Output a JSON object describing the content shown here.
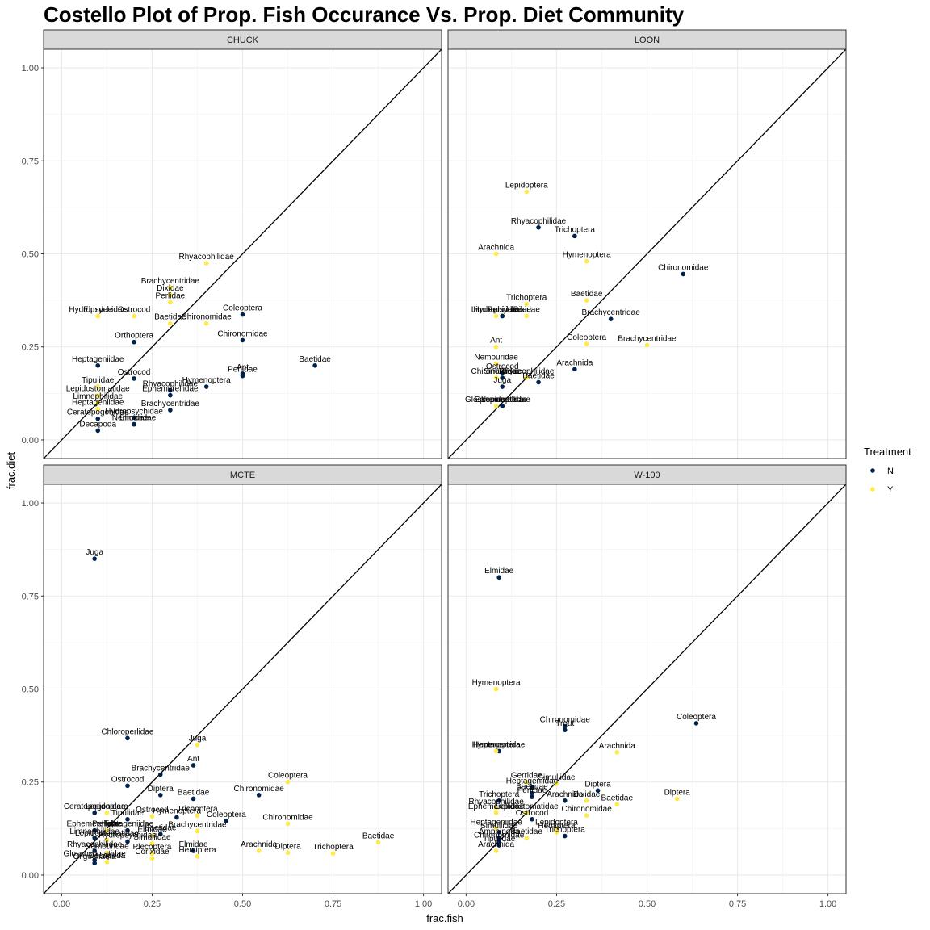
{
  "chart_data": {
    "type": "scatter",
    "title": "Costello Plot of Prop. Fish Occurance Vs. Prop. Diet Community",
    "xlabel": "frac.fish",
    "ylabel": "frac.diet",
    "xlim": [
      -0.05,
      1.05
    ],
    "ylim": [
      -0.05,
      1.05
    ],
    "x_ticks": [
      "0.00",
      "0.25",
      "0.50",
      "0.75",
      "1.00"
    ],
    "y_ticks": [
      "0.00",
      "0.25",
      "0.50",
      "0.75",
      "1.00"
    ],
    "tick_values": [
      0,
      0.25,
      0.5,
      0.75,
      1
    ],
    "reference_line": "y = x",
    "grid": true,
    "legend": {
      "title": "Treatment",
      "placement": "right",
      "entries": [
        {
          "key": "N",
          "label": "N",
          "color": "#00204D"
        },
        {
          "key": "Y",
          "label": "Y",
          "color": "#FFEA46"
        }
      ]
    },
    "panels": [
      {
        "name": "CHUCK",
        "points": [
          {
            "label": "Rhyacophilidae",
            "x": 0.4,
            "y": 0.475,
            "t": "Y"
          },
          {
            "label": "Brachycentridae",
            "x": 0.3,
            "y": 0.41,
            "t": "Y"
          },
          {
            "label": "Dixidae",
            "x": 0.3,
            "y": 0.39,
            "t": "Y"
          },
          {
            "label": "Perlidae",
            "x": 0.3,
            "y": 0.37,
            "t": "Y"
          },
          {
            "label": "Hydropsychidae",
            "x": 0.1,
            "y": 0.333,
            "t": "Y"
          },
          {
            "label": "Elmidae",
            "x": 0.1,
            "y": 0.333,
            "t": "Y"
          },
          {
            "label": "Ostrocod",
            "x": 0.2,
            "y": 0.333,
            "t": "Y"
          },
          {
            "label": "Baetidae",
            "x": 0.3,
            "y": 0.313,
            "t": "Y"
          },
          {
            "label": "Chironomidae",
            "x": 0.4,
            "y": 0.313,
            "t": "Y"
          },
          {
            "label": "Coleoptera",
            "x": 0.5,
            "y": 0.337,
            "t": "N"
          },
          {
            "label": "Orthoptera",
            "x": 0.2,
            "y": 0.263,
            "t": "N"
          },
          {
            "label": "Chironomidae",
            "x": 0.5,
            "y": 0.268,
            "t": "N"
          },
          {
            "label": "Heptageniidae",
            "x": 0.1,
            "y": 0.2,
            "t": "N"
          },
          {
            "label": "Baetidae",
            "x": 0.7,
            "y": 0.2,
            "t": "N"
          },
          {
            "label": "Ostrocod",
            "x": 0.2,
            "y": 0.165,
            "t": "N"
          },
          {
            "label": "Tipulidae",
            "x": 0.1,
            "y": 0.143,
            "t": "Y"
          },
          {
            "label": "Ant",
            "x": 0.5,
            "y": 0.178,
            "t": "N"
          },
          {
            "label": "Perlidae",
            "x": 0.5,
            "y": 0.172,
            "t": "N"
          },
          {
            "label": "Hymenoptera",
            "x": 0.4,
            "y": 0.143,
            "t": "N"
          },
          {
            "label": "Rhyacophilidae",
            "x": 0.3,
            "y": 0.133,
            "t": "N"
          },
          {
            "label": "Ephemerellidae",
            "x": 0.3,
            "y": 0.12,
            "t": "N"
          },
          {
            "label": "Lepidostomatidae",
            "x": 0.1,
            "y": 0.12,
            "t": "Y"
          },
          {
            "label": "Limnephilidae",
            "x": 0.1,
            "y": 0.1,
            "t": "Y"
          },
          {
            "label": "Heptageniidae",
            "x": 0.1,
            "y": 0.083,
            "t": "Y"
          },
          {
            "label": "Brachycentridae",
            "x": 0.3,
            "y": 0.08,
            "t": "N"
          },
          {
            "label": "Ceratopogonidae",
            "x": 0.1,
            "y": 0.057,
            "t": "N"
          },
          {
            "label": "Hydropsychidae",
            "x": 0.2,
            "y": 0.06,
            "t": "N"
          },
          {
            "label": "Nemouridae",
            "x": 0.2,
            "y": 0.042,
            "t": "N"
          },
          {
            "label": "Elmidae",
            "x": 0.2,
            "y": 0.042,
            "t": "N"
          },
          {
            "label": "Decapoda",
            "x": 0.1,
            "y": 0.025,
            "t": "N"
          }
        ]
      },
      {
        "name": "LOON",
        "points": [
          {
            "label": "Lepidoptera",
            "x": 0.167,
            "y": 0.667,
            "t": "Y"
          },
          {
            "label": "Rhyacophilidae",
            "x": 0.2,
            "y": 0.571,
            "t": "N"
          },
          {
            "label": "Trichoptera",
            "x": 0.3,
            "y": 0.548,
            "t": "N"
          },
          {
            "label": "Arachnida",
            "x": 0.083,
            "y": 0.5,
            "t": "Y"
          },
          {
            "label": "Hymenoptera",
            "x": 0.333,
            "y": 0.48,
            "t": "Y"
          },
          {
            "label": "Chironomidae",
            "x": 0.6,
            "y": 0.446,
            "t": "N"
          },
          {
            "label": "Trichoptera",
            "x": 0.167,
            "y": 0.365,
            "t": "Y"
          },
          {
            "label": "Baetidae",
            "x": 0.333,
            "y": 0.375,
            "t": "Y"
          },
          {
            "label": "Limnephilidae",
            "x": 0.083,
            "y": 0.333,
            "t": "Y"
          },
          {
            "label": "Perlidae",
            "x": 0.1,
            "y": 0.333,
            "t": "N"
          },
          {
            "label": "Hydropsychidae",
            "x": 0.1,
            "y": 0.333,
            "t": "N"
          },
          {
            "label": "Dixidae",
            "x": 0.167,
            "y": 0.333,
            "t": "Y"
          },
          {
            "label": "Brachycentridae",
            "x": 0.4,
            "y": 0.325,
            "t": "N"
          },
          {
            "label": "Ant",
            "x": 0.083,
            "y": 0.25,
            "t": "Y"
          },
          {
            "label": "Coleoptera",
            "x": 0.333,
            "y": 0.258,
            "t": "Y"
          },
          {
            "label": "Brachycentridae",
            "x": 0.5,
            "y": 0.255,
            "t": "Y"
          },
          {
            "label": "Arachnida",
            "x": 0.3,
            "y": 0.19,
            "t": "N"
          },
          {
            "label": "Nemouridae",
            "x": 0.083,
            "y": 0.205,
            "t": "Y"
          },
          {
            "label": "Ostrocod",
            "x": 0.1,
            "y": 0.18,
            "t": "N"
          },
          {
            "label": "Chironomidae",
            "x": 0.083,
            "y": 0.167,
            "t": "Y"
          },
          {
            "label": "Simuliidae",
            "x": 0.1,
            "y": 0.167,
            "t": "N"
          },
          {
            "label": "Rhyacophilidae",
            "x": 0.167,
            "y": 0.167,
            "t": "Y"
          },
          {
            "label": "Baetidae",
            "x": 0.2,
            "y": 0.155,
            "t": "N"
          },
          {
            "label": "Juga",
            "x": 0.1,
            "y": 0.143,
            "t": "N"
          },
          {
            "label": "Glossosomatidae",
            "x": 0.083,
            "y": 0.091,
            "t": "Y"
          },
          {
            "label": "Lepidoptera",
            "x": 0.1,
            "y": 0.091,
            "t": "N"
          },
          {
            "label": "Ephemerellidae",
            "x": 0.1,
            "y": 0.091,
            "t": "N"
          }
        ]
      },
      {
        "name": "MCTE",
        "points": [
          {
            "label": "Juga",
            "x": 0.091,
            "y": 0.85,
            "t": "N"
          },
          {
            "label": "Chloroperlidae",
            "x": 0.182,
            "y": 0.368,
            "t": "N"
          },
          {
            "label": "Juga",
            "x": 0.375,
            "y": 0.35,
            "t": "Y"
          },
          {
            "label": "Ant",
            "x": 0.364,
            "y": 0.295,
            "t": "N"
          },
          {
            "label": "Brachycentridae",
            "x": 0.273,
            "y": 0.27,
            "t": "N"
          },
          {
            "label": "Coleoptera",
            "x": 0.625,
            "y": 0.25,
            "t": "Y"
          },
          {
            "label": "Ostrocod",
            "x": 0.182,
            "y": 0.24,
            "t": "N"
          },
          {
            "label": "Chironomidae",
            "x": 0.545,
            "y": 0.215,
            "t": "N"
          },
          {
            "label": "Diptera",
            "x": 0.273,
            "y": 0.215,
            "t": "N"
          },
          {
            "label": "Baetidae",
            "x": 0.364,
            "y": 0.205,
            "t": "N"
          },
          {
            "label": "Ceratopogonidae",
            "x": 0.091,
            "y": 0.167,
            "t": "N"
          },
          {
            "label": "Lepidoptera",
            "x": 0.125,
            "y": 0.167,
            "t": "Y"
          },
          {
            "label": "Tipulidae",
            "x": 0.182,
            "y": 0.15,
            "t": "N"
          },
          {
            "label": "Ostrocod",
            "x": 0.25,
            "y": 0.158,
            "t": "Y"
          },
          {
            "label": "Hymenoptera",
            "x": 0.318,
            "y": 0.155,
            "t": "N"
          },
          {
            "label": "Trichoptera",
            "x": 0.375,
            "y": 0.16,
            "t": "Y"
          },
          {
            "label": "Coleoptera",
            "x": 0.455,
            "y": 0.145,
            "t": "N"
          },
          {
            "label": "Brachycentridae",
            "x": 0.375,
            "y": 0.118,
            "t": "Y"
          },
          {
            "label": "Chironomidae",
            "x": 0.625,
            "y": 0.138,
            "t": "Y"
          },
          {
            "label": "Ephemerellidae",
            "x": 0.091,
            "y": 0.12,
            "t": "N"
          },
          {
            "label": "Perlidae",
            "x": 0.125,
            "y": 0.12,
            "t": "Y"
          },
          {
            "label": "Heptageniidae",
            "x": 0.182,
            "y": 0.12,
            "t": "N"
          },
          {
            "label": "Baetidae",
            "x": 0.273,
            "y": 0.11,
            "t": "N"
          },
          {
            "label": "Elmidae",
            "x": 0.25,
            "y": 0.105,
            "t": "Y"
          },
          {
            "label": "Limnephilidae",
            "x": 0.091,
            "y": 0.1,
            "t": "N"
          },
          {
            "label": "Lepidostomatidae",
            "x": 0.125,
            "y": 0.095,
            "t": "Y"
          },
          {
            "label": "Hydropsychidae",
            "x": 0.182,
            "y": 0.09,
            "t": "N"
          },
          {
            "label": "Simuliidae",
            "x": 0.25,
            "y": 0.085,
            "t": "Y"
          },
          {
            "label": "Baetidae",
            "x": 0.875,
            "y": 0.088,
            "t": "Y"
          },
          {
            "label": "Rhyacophilidae",
            "x": 0.091,
            "y": 0.065,
            "t": "N"
          },
          {
            "label": "Nemouridae",
            "x": 0.125,
            "y": 0.06,
            "t": "Y"
          },
          {
            "label": "Arachnida",
            "x": 0.545,
            "y": 0.065,
            "t": "Y"
          },
          {
            "label": "Diptera",
            "x": 0.625,
            "y": 0.06,
            "t": "Y"
          },
          {
            "label": "Trichoptera",
            "x": 0.75,
            "y": 0.058,
            "t": "Y"
          },
          {
            "label": "Hemiptera",
            "x": 0.375,
            "y": 0.05,
            "t": "Y"
          },
          {
            "label": "Elmidae",
            "x": 0.364,
            "y": 0.065,
            "t": "N"
          },
          {
            "label": "Plecoptera",
            "x": 0.25,
            "y": 0.058,
            "t": "Y"
          },
          {
            "label": "Glossosomatidae",
            "x": 0.091,
            "y": 0.04,
            "t": "N"
          },
          {
            "label": "Decapoda",
            "x": 0.125,
            "y": 0.035,
            "t": "Y"
          },
          {
            "label": "Oligochaeta",
            "x": 0.091,
            "y": 0.032,
            "t": "N"
          },
          {
            "label": "Corixidae",
            "x": 0.25,
            "y": 0.045,
            "t": "Y"
          }
        ]
      },
      {
        "name": "W-100",
        "points": [
          {
            "label": "Elmidae",
            "x": 0.091,
            "y": 0.8,
            "t": "N"
          },
          {
            "label": "Hymenoptera",
            "x": 0.083,
            "y": 0.5,
            "t": "Y"
          },
          {
            "label": "Chironomidae",
            "x": 0.273,
            "y": 0.4,
            "t": "N"
          },
          {
            "label": "Trout",
            "x": 0.273,
            "y": 0.39,
            "t": "N"
          },
          {
            "label": "Coleoptera",
            "x": 0.636,
            "y": 0.408,
            "t": "N"
          },
          {
            "label": "Heptageniidae",
            "x": 0.091,
            "y": 0.333,
            "t": "N"
          },
          {
            "label": "Hymenoptera",
            "x": 0.083,
            "y": 0.333,
            "t": "Y"
          },
          {
            "label": "Arachnida",
            "x": 0.417,
            "y": 0.33,
            "t": "Y"
          },
          {
            "label": "Gerridae",
            "x": 0.167,
            "y": 0.25,
            "t": "Y"
          },
          {
            "label": "Simuliidae",
            "x": 0.25,
            "y": 0.245,
            "t": "Y"
          },
          {
            "label": "Heptageniidae",
            "x": 0.182,
            "y": 0.235,
            "t": "N"
          },
          {
            "label": "Diptera",
            "x": 0.364,
            "y": 0.227,
            "t": "N"
          },
          {
            "label": "Baetidae",
            "x": 0.182,
            "y": 0.22,
            "t": "N"
          },
          {
            "label": "Perlidae",
            "x": 0.182,
            "y": 0.21,
            "t": "N"
          },
          {
            "label": "Diptera",
            "x": 0.583,
            "y": 0.205,
            "t": "Y"
          },
          {
            "label": "Trichoptera",
            "x": 0.091,
            "y": 0.2,
            "t": "N"
          },
          {
            "label": "Arachnida",
            "x": 0.273,
            "y": 0.2,
            "t": "N"
          },
          {
            "label": "Dixidae",
            "x": 0.333,
            "y": 0.2,
            "t": "Y"
          },
          {
            "label": "Baetidae",
            "x": 0.417,
            "y": 0.19,
            "t": "Y"
          },
          {
            "label": "Rhyacophilidae",
            "x": 0.083,
            "y": 0.18,
            "t": "Y"
          },
          {
            "label": "Chironomidae",
            "x": 0.333,
            "y": 0.16,
            "t": "Y"
          },
          {
            "label": "Ephemerellidae",
            "x": 0.083,
            "y": 0.167,
            "t": "Y"
          },
          {
            "label": "Lepidostomatidae",
            "x": 0.167,
            "y": 0.167,
            "t": "Y"
          },
          {
            "label": "Ostrocod",
            "x": 0.182,
            "y": 0.15,
            "t": "N"
          },
          {
            "label": "Heptageniidae",
            "x": 0.083,
            "y": 0.125,
            "t": "Y"
          },
          {
            "label": "Lepidoptera",
            "x": 0.25,
            "y": 0.125,
            "t": "Y"
          },
          {
            "label": "Simuliidae",
            "x": 0.091,
            "y": 0.115,
            "t": "N"
          },
          {
            "label": "Hemiptera",
            "x": 0.25,
            "y": 0.115,
            "t": "Y"
          },
          {
            "label": "Amphipoda",
            "x": 0.091,
            "y": 0.1,
            "t": "N"
          },
          {
            "label": "Baetidae",
            "x": 0.167,
            "y": 0.1,
            "t": "Y"
          },
          {
            "label": "Chironomidae",
            "x": 0.091,
            "y": 0.09,
            "t": "N"
          },
          {
            "label": "Trichoptera",
            "x": 0.273,
            "y": 0.105,
            "t": "N"
          },
          {
            "label": "Arachnida",
            "x": 0.083,
            "y": 0.065,
            "t": "Y"
          },
          {
            "label": "Tipulidae",
            "x": 0.091,
            "y": 0.08,
            "t": "N"
          }
        ]
      }
    ]
  }
}
